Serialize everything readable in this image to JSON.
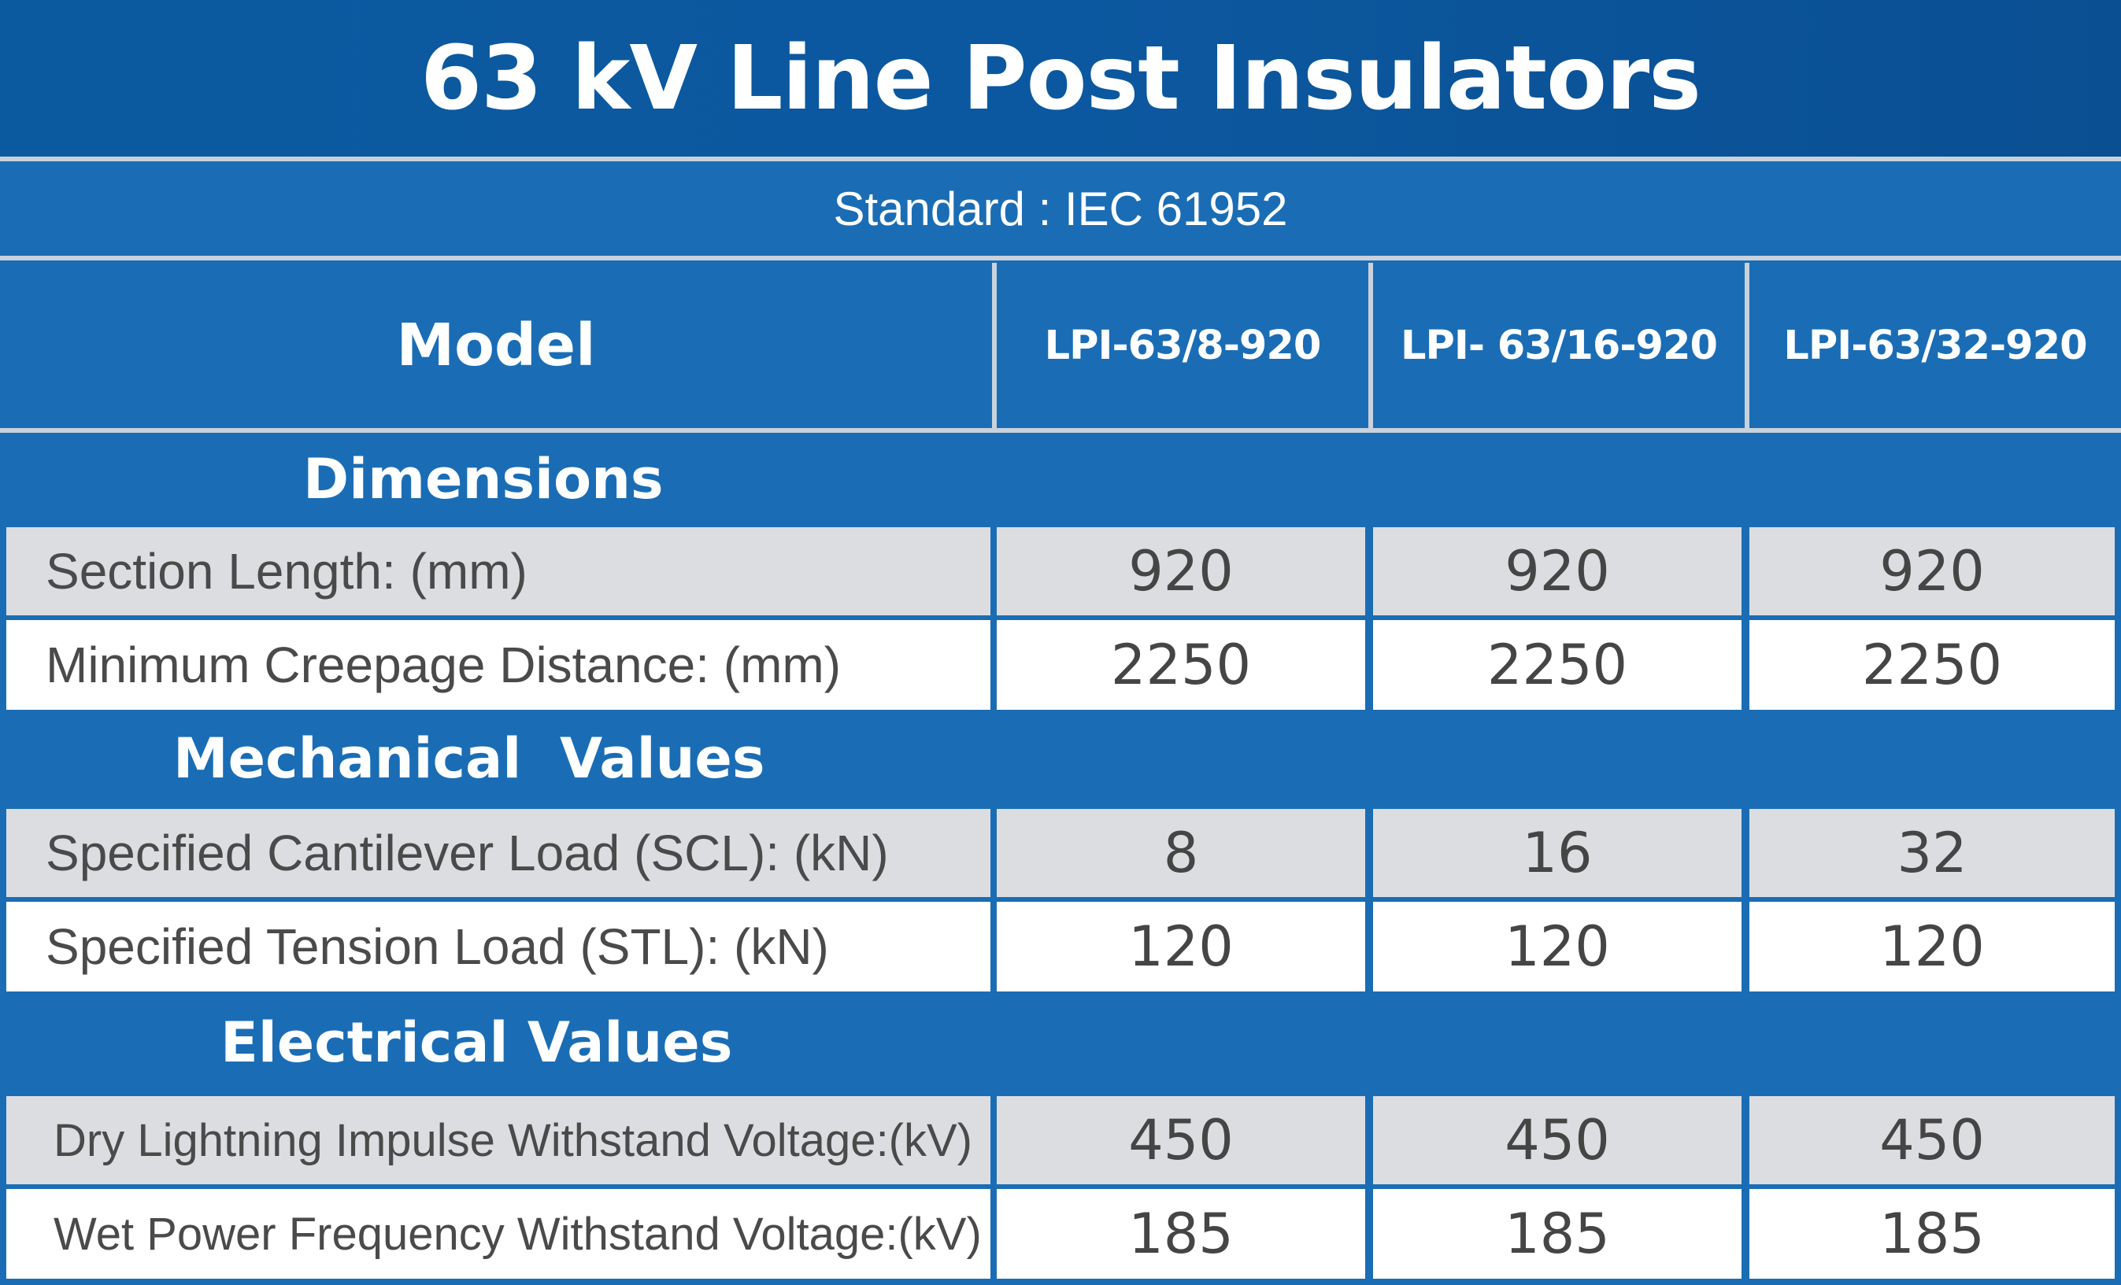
{
  "title": "63 kV Line Post Insulators",
  "standard": "Standard : IEC 61952",
  "header": {
    "model_label": "Model",
    "columns": [
      "LPI-63/8-920",
      "LPI- 63/16-920",
      "LPI-63/32-920"
    ]
  },
  "sections": [
    {
      "name": "Dimensions",
      "rows": [
        {
          "label": "Section Length: (mm)",
          "values": [
            "920",
            "920",
            "920"
          ]
        },
        {
          "label": "Minimum Creepage Distance: (mm)",
          "values": [
            "2250",
            "2250",
            "2250"
          ]
        }
      ]
    },
    {
      "name": "Mechanical  Values",
      "rows": [
        {
          "label": "Specified Cantilever Load (SCL): (kN)",
          "values": [
            "8",
            "16",
            "32"
          ]
        },
        {
          "label": "Specified Tension Load (STL): (kN)",
          "values": [
            "120",
            "120",
            "120"
          ]
        }
      ]
    },
    {
      "name": "Electrical Values",
      "rows": [
        {
          "label": "Dry Lightning Impulse Withstand Voltage:(kV)",
          "values": [
            "450",
            "450",
            "450"
          ]
        },
        {
          "label": "Wet Power Frequency Withstand Voltage:(kV)",
          "values": [
            "185",
            "185",
            "185"
          ]
        }
      ]
    }
  ],
  "colors": {
    "title_band": "#0c58a0",
    "body_blue": "#1a6db5",
    "grey_row": "#dcdde1",
    "white_row": "#ffffff",
    "separator": "#c9d2dc"
  }
}
